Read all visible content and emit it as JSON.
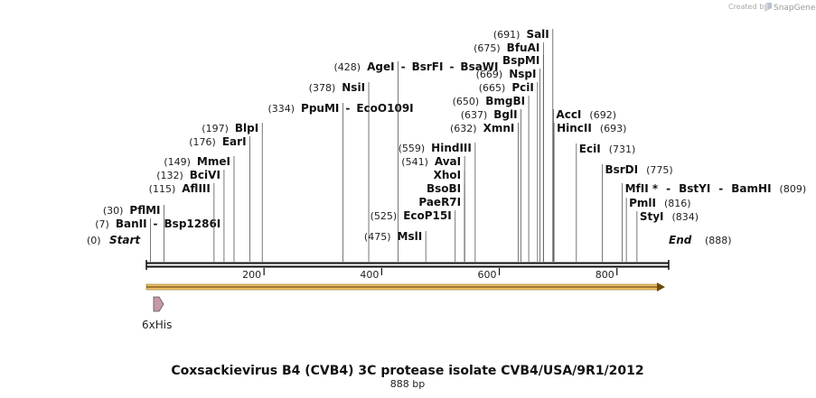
{
  "credit": {
    "created_by": "Created by",
    "brand": "SnapGene"
  },
  "title": "Coxsackievirus B4 (CVB4) 3C protease isolate CVB4/USA/9R1/2012",
  "subtitle": "888 bp",
  "length": 888,
  "ticks": [
    200,
    400,
    600,
    800
  ],
  "start_label": {
    "pos": "(0)",
    "name": "Start"
  },
  "end_label": {
    "pos": "(888)",
    "name": "End"
  },
  "feature": {
    "name": "6xHis"
  },
  "sites": [
    {
      "pos": 7,
      "label": "(7)",
      "names": [
        "BanII",
        "Bsp1286I"
      ],
      "side": "left"
    },
    {
      "pos": 30,
      "label": "(30)",
      "names": [
        "PflMI"
      ],
      "side": "left"
    },
    {
      "pos": 115,
      "label": "(115)",
      "names": [
        "AflIII"
      ],
      "side": "left"
    },
    {
      "pos": 132,
      "label": "(132)",
      "names": [
        "BciVI"
      ],
      "side": "left"
    },
    {
      "pos": 149,
      "label": "(149)",
      "names": [
        "MmeI"
      ],
      "side": "left"
    },
    {
      "pos": 176,
      "label": "(176)",
      "names": [
        "EarI"
      ],
      "side": "left"
    },
    {
      "pos": 197,
      "label": "(197)",
      "names": [
        "BlpI"
      ],
      "side": "left"
    },
    {
      "pos": 334,
      "label": "(334)",
      "names": [
        "PpuMI",
        "EcoO109I"
      ],
      "side": "left"
    },
    {
      "pos": 378,
      "label": "(378)",
      "names": [
        "NsiI"
      ],
      "side": "left"
    },
    {
      "pos": 428,
      "label": "(428)",
      "names": [
        "AgeI",
        "BsrFI",
        "BsaWI"
      ],
      "side": "left"
    },
    {
      "pos": 475,
      "label": "(475)",
      "names": [
        "MslI"
      ],
      "side": "left"
    },
    {
      "pos": 525,
      "label": "(525)",
      "names": [
        "EcoP15I"
      ],
      "side": "left"
    },
    {
      "pos": 541,
      "label": "",
      "names": [
        "PaeR7I"
      ],
      "side": "left"
    },
    {
      "pos": 541,
      "label": "",
      "names": [
        "BsoBI"
      ],
      "side": "left"
    },
    {
      "pos": 541,
      "label": "",
      "names": [
        "XhoI"
      ],
      "side": "left"
    },
    {
      "pos": 541,
      "label": "(541)",
      "names": [
        "AvaI"
      ],
      "side": "left"
    },
    {
      "pos": 559,
      "label": "(559)",
      "names": [
        "HindIII"
      ],
      "side": "left"
    },
    {
      "pos": 632,
      "label": "(632)",
      "names": [
        "XmnI"
      ],
      "side": "left"
    },
    {
      "pos": 637,
      "label": "(637)",
      "names": [
        "BglI"
      ],
      "side": "left"
    },
    {
      "pos": 650,
      "label": "(650)",
      "names": [
        "BmgBI"
      ],
      "side": "left"
    },
    {
      "pos": 665,
      "label": "(665)",
      "names": [
        "PciI"
      ],
      "side": "left"
    },
    {
      "pos": 669,
      "label": "(669)",
      "names": [
        "NspI"
      ],
      "side": "left"
    },
    {
      "pos": 675,
      "label": "",
      "names": [
        "BspMI"
      ],
      "side": "left"
    },
    {
      "pos": 675,
      "label": "(675)",
      "names": [
        "BfuAI"
      ],
      "side": "left"
    },
    {
      "pos": 691,
      "label": "(691)",
      "names": [
        "SalI"
      ],
      "side": "left"
    },
    {
      "pos": 692,
      "label": "(692)",
      "names": [
        "AccI"
      ],
      "side": "right"
    },
    {
      "pos": 693,
      "label": "(693)",
      "names": [
        "HincII"
      ],
      "side": "right"
    },
    {
      "pos": 731,
      "label": "(731)",
      "names": [
        "EciI"
      ],
      "side": "right"
    },
    {
      "pos": 775,
      "label": "(775)",
      "names": [
        "BsrDI"
      ],
      "side": "right"
    },
    {
      "pos": 809,
      "label": "(809)",
      "names": [
        "MfII *",
        "BstYI",
        "BamHI"
      ],
      "side": "right"
    },
    {
      "pos": 816,
      "label": "(816)",
      "names": [
        "PmlI"
      ],
      "side": "right"
    },
    {
      "pos": 834,
      "label": "(834)",
      "names": [
        "StyI"
      ],
      "side": "right"
    }
  ]
}
